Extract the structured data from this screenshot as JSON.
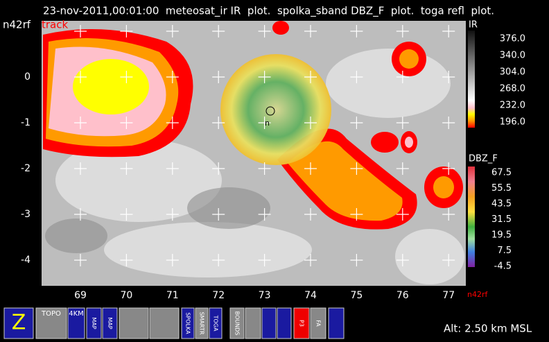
{
  "header": {
    "line1": "23-nov-2011,00:01:00  meteosat_ir IR  plot.  spolka_sband DBZ_F  plot.  toga refl  plot.",
    "platform": "n42rf",
    "track": "track"
  },
  "map": {
    "lon_labels": [
      "69",
      "70",
      "71",
      "72",
      "73",
      "74",
      "75",
      "76",
      "77"
    ],
    "lat_labels": [
      "0",
      "-1",
      "-2",
      "-3",
      "-4"
    ],
    "corner_label": "n42rf",
    "marker_label": "n"
  },
  "ir_scale": {
    "title": "IR",
    "labels": [
      "376.0",
      "340.0",
      "304.0",
      "268.0",
      "232.0",
      "196.0"
    ]
  },
  "dbz_scale": {
    "title": "DBZ_F",
    "labels": [
      "67.5",
      "55.5",
      "43.5",
      "31.5",
      "19.5",
      "7.5",
      "-4.5"
    ]
  },
  "toolbar": {
    "labels": [
      "Z",
      "TOPO",
      "4KM",
      "MAP",
      "MAP",
      "SPOLKA",
      "SMARTR",
      "TOGA",
      "BOUNDS",
      "P3",
      "FA"
    ]
  },
  "status": {
    "altitude": "Alt: 2.50 km MSL"
  }
}
